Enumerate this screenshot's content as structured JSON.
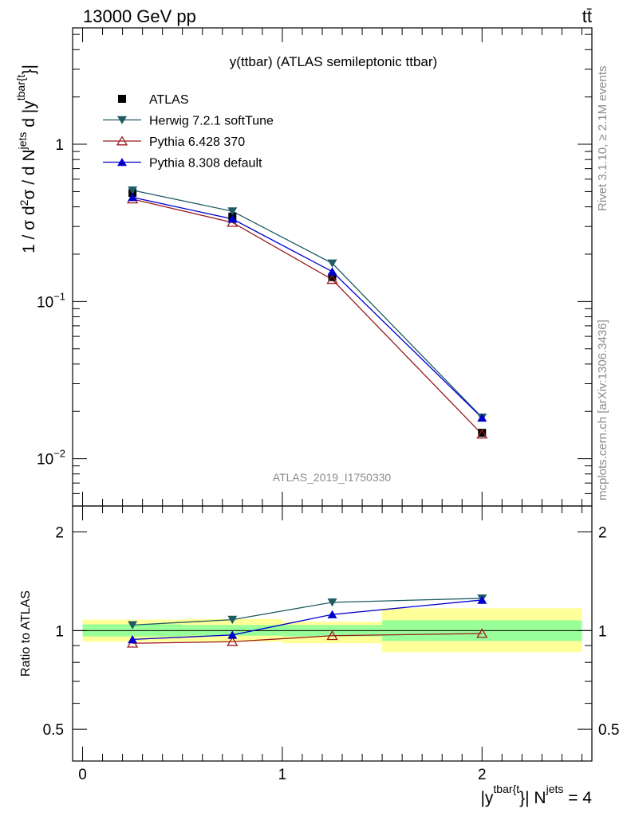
{
  "header": {
    "left": "13000 GeV pp",
    "right": "tt̄"
  },
  "side_labels": {
    "rivet": "Rivet 3.1.10, ≥ 2.1M events",
    "mcplots": "mcplots.cern.ch [arXiv:1306.3436]"
  },
  "chart_data": [
    {
      "type": "line",
      "title": "y(ttbar) (ATLAS semileptonic ttbar)",
      "watermark": "ATLAS_2019_I1750330",
      "ylabel": "1 / σ d²σ / d Nʲᵉᵗˢ d |yᵗᵇᵃʳ{ᵗ}|",
      "ylabel_parts": {
        "main": "1 / σ d",
        "sup2": "2",
        "mid": "σ / d N",
        "sup_jets": "jets",
        "mid2": " d |y",
        "sup_tbar": "tbar{t",
        "end": "}|"
      },
      "yscale": "log",
      "ylim": [
        0.005,
        5.5
      ],
      "xlim": [
        -0.05,
        2.55
      ],
      "yticks": [
        {
          "value": 1,
          "label": "1"
        },
        {
          "value": 0.1,
          "label": "10",
          "exp": "−1"
        },
        {
          "value": 0.01,
          "label": "10",
          "exp": "−2"
        }
      ],
      "legend_position": "top-left",
      "series": [
        {
          "name": "ATLAS",
          "color": "#000000",
          "marker": "square",
          "x": [
            0.25,
            0.75,
            1.25,
            2.0
          ],
          "y": [
            0.49,
            0.347,
            0.143,
            0.0146
          ]
        },
        {
          "name": "Herwig 7.2.1 softTune",
          "color": "#1e5b63",
          "marker": "triangle-down",
          "x": [
            0.25,
            0.75,
            1.25,
            2.0
          ],
          "y": [
            0.51,
            0.375,
            0.175,
            0.0183
          ]
        },
        {
          "name": "Pythia 6.428 370",
          "color": "#9b1a1f",
          "marker": "triangle-up-open",
          "x": [
            0.25,
            0.75,
            1.25,
            2.0
          ],
          "y": [
            0.448,
            0.318,
            0.138,
            0.0143
          ]
        },
        {
          "name": "Pythia 8.308 default",
          "color": "#0000cc",
          "marker": "triangle-up",
          "x": [
            0.25,
            0.75,
            1.25,
            2.0
          ],
          "y": [
            0.46,
            0.335,
            0.155,
            0.0182
          ]
        }
      ]
    },
    {
      "type": "line",
      "ylabel": "Ratio to ATLAS",
      "xlabel_parts": {
        "start": "|y",
        "sup_tbar": "tbar{t",
        "mid": "}| N",
        "sup_jets": "jets",
        "end": " = 4"
      },
      "yscale": "log",
      "ylim": [
        0.4,
        2.4
      ],
      "xlim": [
        -0.05,
        2.55
      ],
      "yticks": [
        {
          "value": 0.5,
          "label": "0.5"
        },
        {
          "value": 1,
          "label": "1"
        },
        {
          "value": 2,
          "label": "2"
        }
      ],
      "xticks": [
        {
          "value": 0,
          "label": "0"
        },
        {
          "value": 1,
          "label": "1"
        },
        {
          "value": 2,
          "label": "2"
        }
      ],
      "bands": [
        {
          "x0": 0.0,
          "x1": 0.5,
          "yellow": [
            0.925,
            1.08
          ],
          "green": [
            0.96,
            1.045
          ]
        },
        {
          "x0": 0.5,
          "x1": 1.0,
          "yellow": [
            0.925,
            1.085
          ],
          "green": [
            0.965,
            1.04
          ]
        },
        {
          "x0": 1.0,
          "x1": 1.5,
          "yellow": [
            0.915,
            1.065
          ],
          "green": [
            0.96,
            1.04
          ]
        },
        {
          "x0": 1.5,
          "x1": 2.5,
          "yellow": [
            0.86,
            1.17
          ],
          "green": [
            0.93,
            1.075
          ]
        }
      ],
      "band_colors": {
        "yellow": "#ffff99",
        "green": "#99ff99"
      },
      "series": [
        {
          "name": "Herwig 7.2.1 softTune",
          "color": "#1e5b63",
          "marker": "triangle-down",
          "x": [
            0.25,
            0.75,
            1.25,
            2.0
          ],
          "y": [
            1.04,
            1.08,
            1.22,
            1.255
          ]
        },
        {
          "name": "Pythia 6.428 370",
          "color": "#9b1a1f",
          "marker": "triangle-up-open",
          "x": [
            0.25,
            0.75,
            1.25,
            2.0
          ],
          "y": [
            0.915,
            0.925,
            0.965,
            0.98
          ]
        },
        {
          "name": "Pythia 8.308 default",
          "color": "#0000cc",
          "marker": "triangle-up",
          "x": [
            0.25,
            0.75,
            1.25,
            2.0
          ],
          "y": [
            0.94,
            0.97,
            1.12,
            1.24
          ]
        }
      ]
    }
  ]
}
